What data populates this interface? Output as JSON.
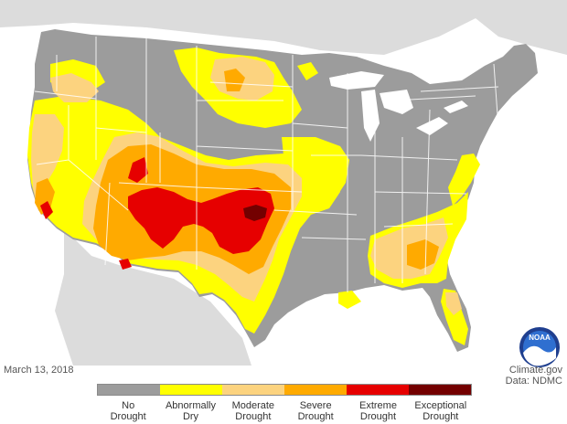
{
  "map": {
    "date": "March 13, 2018",
    "credit_line1": "Climate.gov",
    "credit_line2": "Data: NDMC",
    "logo_text": "NOAA"
  },
  "legend": {
    "items": [
      {
        "line1": "No",
        "line2": "Drought",
        "color": "#9c9c9c"
      },
      {
        "line1": "Abnormally",
        "line2": "Dry",
        "color": "#ffff00"
      },
      {
        "line1": "Moderate",
        "line2": "Drought",
        "color": "#fcd37f"
      },
      {
        "line1": "Severe",
        "line2": "Drought",
        "color": "#ffaa00"
      },
      {
        "line1": "Extreme",
        "line2": "Drought",
        "color": "#e60000"
      },
      {
        "line1": "Exceptional",
        "line2": "Drought",
        "color": "#730000"
      }
    ]
  },
  "colors": {
    "water": "#ffffff",
    "land_outside": "#d4d4d4",
    "no_drought": "#9c9c9c",
    "abnormally_dry": "#ffff00",
    "moderate": "#fcd37f",
    "severe": "#ffaa00",
    "extreme": "#e60000",
    "exceptional": "#730000",
    "borders": "#ffffff"
  }
}
